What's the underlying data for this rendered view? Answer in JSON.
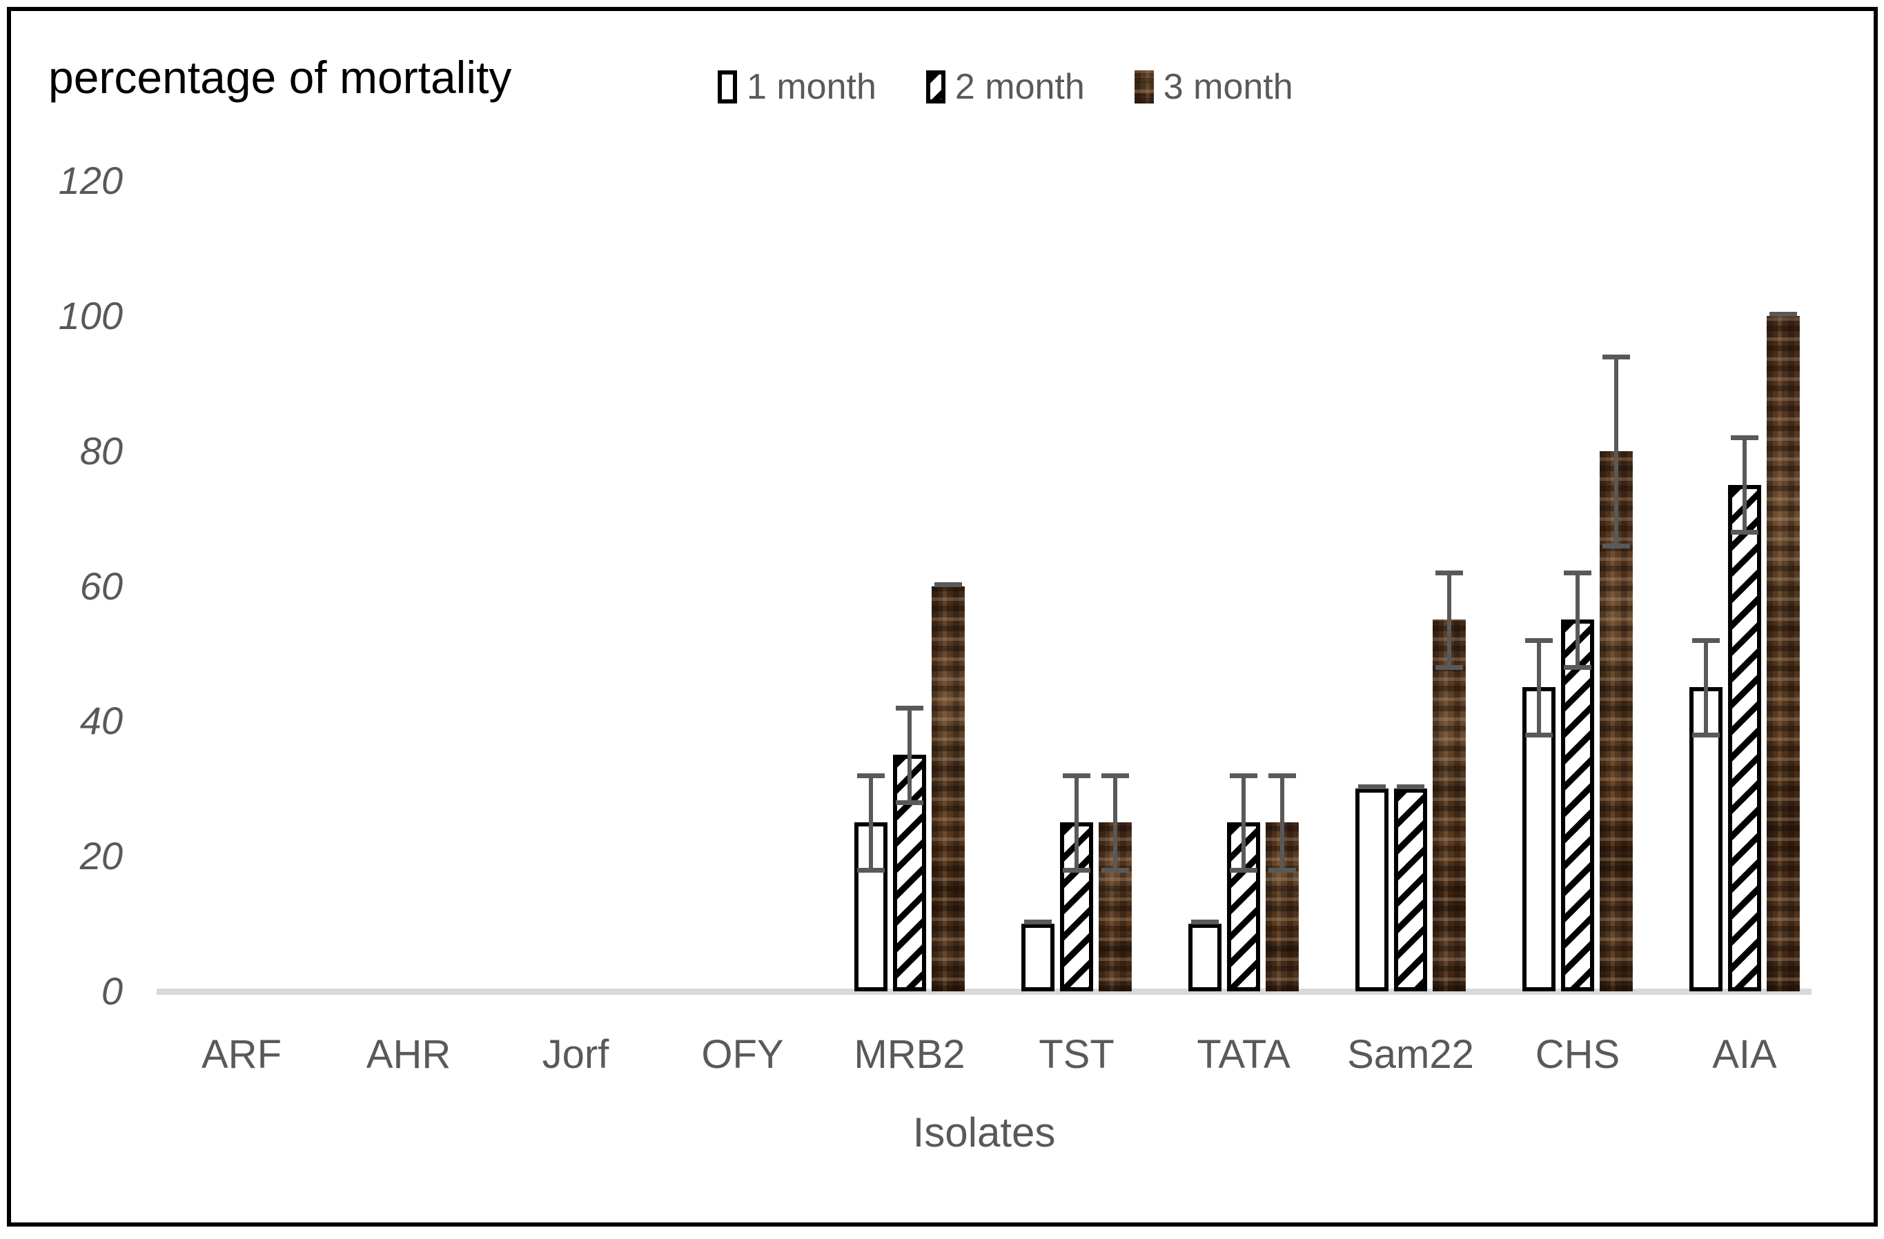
{
  "chart_data": {
    "type": "bar",
    "title": "percentage of mortality",
    "xlabel": "Isolates",
    "ylabel": "",
    "categories": [
      "ARF",
      "AHR",
      "Jorf",
      "OFY",
      "MRB2",
      "TST",
      "TATA",
      "Sam22",
      "CHS",
      "AIA"
    ],
    "series": [
      {
        "name": "1 month",
        "style": "white",
        "values": [
          0,
          0,
          0,
          0,
          25,
          10,
          10,
          30,
          45,
          45
        ],
        "errors": [
          null,
          null,
          null,
          null,
          7,
          0,
          0,
          0,
          7,
          7
        ]
      },
      {
        "name": "2 month",
        "style": "hatch",
        "values": [
          0,
          0,
          0,
          0,
          35,
          25,
          25,
          30,
          55,
          75
        ],
        "errors": [
          null,
          null,
          null,
          null,
          7,
          7,
          7,
          0,
          7,
          7
        ]
      },
      {
        "name": "3 month",
        "style": "brown",
        "values": [
          0,
          0,
          0,
          0,
          60,
          25,
          25,
          55,
          80,
          100
        ],
        "errors": [
          null,
          null,
          null,
          null,
          0,
          7,
          7,
          7,
          14,
          0
        ]
      }
    ],
    "ylim": [
      0,
      120
    ],
    "yticks": [
      0,
      20,
      40,
      60,
      80,
      100,
      120
    ],
    "grid": false,
    "legend_position": "top",
    "error_bars": true
  },
  "colors": {
    "title_text": "#000000",
    "axis_text": "#595959",
    "legend_text": "#595959",
    "error_bar": "#595959",
    "baseline": "#d9d9d9",
    "bar_outline": "#000000",
    "bar_fill_1month": "#ffffff",
    "bar_fill_3month_brown": "#4b3322",
    "frame_border": "#000000"
  }
}
